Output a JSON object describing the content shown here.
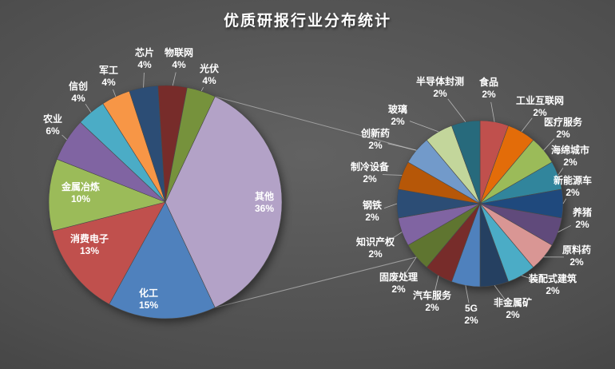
{
  "title": "优质研报行业分布统计",
  "colors": {
    "background_center": "#626262",
    "background_edge": "#363636",
    "label_text": "#ffffff",
    "connector_line": "#a6a6a6"
  },
  "chart_data": {
    "type": "pie",
    "subtype": "pie-of-pie",
    "title": "优质研报行业分布统计",
    "legend": "none",
    "label_format": "category name + percent",
    "units": "percent",
    "main_pie": {
      "start_angle_deg": 25.2,
      "slices": [
        {
          "id": "other",
          "label": "其他",
          "pct": 36,
          "color": "#B3A2C7",
          "expanded_to_secondary": true
        },
        {
          "id": "chemical",
          "label": "化工",
          "pct": 15,
          "color": "#4F81BD"
        },
        {
          "id": "consumer-electronics",
          "label": "消费电子",
          "pct": 13,
          "color": "#C0504D"
        },
        {
          "id": "metal-smelting",
          "label": "金属冶炼",
          "pct": 10,
          "color": "#9BBB59"
        },
        {
          "id": "agriculture",
          "label": "农业",
          "pct": 6,
          "color": "#8064A2"
        },
        {
          "id": "xinchuang-it",
          "label": "信创",
          "pct": 4,
          "color": "#4BACC6"
        },
        {
          "id": "military",
          "label": "军工",
          "pct": 4,
          "color": "#F79646"
        },
        {
          "id": "chips",
          "label": "芯片",
          "pct": 4,
          "color": "#2C4D75"
        },
        {
          "id": "iot",
          "label": "物联网",
          "pct": 4,
          "color": "#772C2A"
        },
        {
          "id": "photovoltaic",
          "label": "光伏",
          "pct": 4,
          "color": "#76923C"
        }
      ]
    },
    "secondary_pie": {
      "start_angle_deg": 0,
      "parent_slice": "其他",
      "slices": [
        {
          "id": "food",
          "label": "食品",
          "pct": 2,
          "color": "#C0504D"
        },
        {
          "id": "industrial-internet",
          "label": "工业互联网",
          "pct": 2,
          "color": "#E36C09"
        },
        {
          "id": "medical-services",
          "label": "医疗服务",
          "pct": 2,
          "color": "#9BBB59"
        },
        {
          "id": "sponge-city",
          "label": "海绵城市",
          "pct": 2,
          "color": "#31859C"
        },
        {
          "id": "new-energy-vehicles",
          "label": "新能源车",
          "pct": 2,
          "color": "#1F497D"
        },
        {
          "id": "pig-farming",
          "label": "养猪",
          "pct": 2,
          "color": "#604A7B"
        },
        {
          "id": "raw-material-drugs",
          "label": "原料药",
          "pct": 2,
          "color": "#D99694"
        },
        {
          "id": "prefab-construction",
          "label": "装配式建筑",
          "pct": 2,
          "color": "#4BACC6"
        },
        {
          "id": "nonmetal-minerals",
          "label": "非金属矿",
          "pct": 2,
          "color": "#254061"
        },
        {
          "id": "5g",
          "label": "5G",
          "pct": 2,
          "color": "#4F81BD"
        },
        {
          "id": "auto-services",
          "label": "汽车服务",
          "pct": 2,
          "color": "#772C2A"
        },
        {
          "id": "solid-waste-treatment",
          "label": "固废处理",
          "pct": 2,
          "color": "#5F7530"
        },
        {
          "id": "intellectual-property",
          "label": "知识产权",
          "pct": 2,
          "color": "#8064A2"
        },
        {
          "id": "steel",
          "label": "钢铁",
          "pct": 2,
          "color": "#2C4D75"
        },
        {
          "id": "cooling-equipment",
          "label": "制冷设备",
          "pct": 2,
          "color": "#B65708"
        },
        {
          "id": "innovative-drugs",
          "label": "创新药",
          "pct": 2,
          "color": "#729ACA"
        },
        {
          "id": "glass",
          "label": "玻璃",
          "pct": 2,
          "color": "#C3D69B"
        },
        {
          "id": "semiconductor-packaging-testing",
          "label": "半导体封测",
          "pct": 2,
          "color": "#276A7C"
        }
      ]
    }
  }
}
